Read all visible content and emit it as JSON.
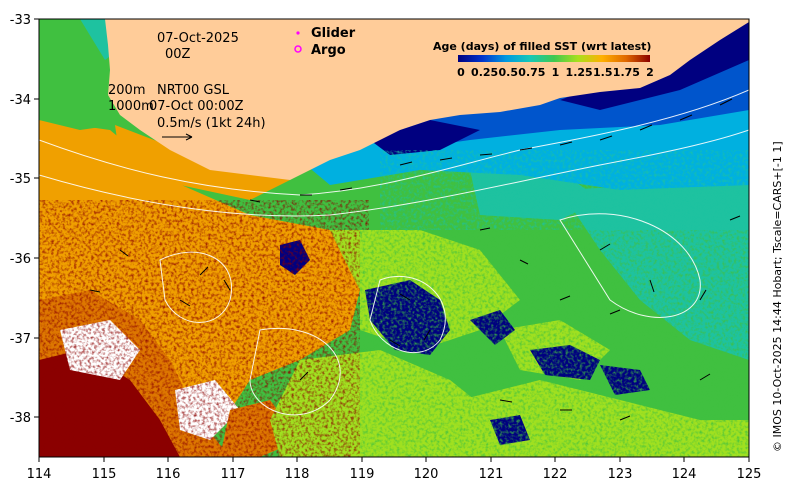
{
  "map": {
    "x_ticks": [
      "114",
      "115",
      "116",
      "117",
      "118",
      "119",
      "120",
      "121",
      "122",
      "123",
      "124",
      "125"
    ],
    "y_ticks": [
      "-33",
      "-34",
      "-35",
      "-36",
      "-37",
      "-38"
    ],
    "x_range": [
      114,
      125
    ],
    "y_range": [
      -38.5,
      -33
    ]
  },
  "annotations": {
    "date": "07-Oct-2025",
    "time": "00Z",
    "contour_200": "200m",
    "contour_1000": "1000m",
    "product": "NRT00 GSL",
    "product_time": "07-Oct 00:00Z",
    "scale_label": "0.5m/s (1kt 24h)"
  },
  "legend": {
    "glider": "Glider",
    "argo": "Argo",
    "glider_color": "#ff00ff",
    "argo_color": "#ff00ff"
  },
  "colorbar": {
    "title": "Age (days) of filled SST (wrt latest)",
    "tick_labels": [
      "0",
      "0.25",
      "0.5",
      "0.75",
      "1",
      "1.25",
      "1.5",
      "1.75",
      "2"
    ],
    "colors": [
      "#00007f",
      "#0033cc",
      "#0099e0",
      "#16c8b8",
      "#40c850",
      "#a8e01c",
      "#ffb000",
      "#e06800",
      "#8b0000"
    ]
  },
  "credit": "© IMOS 10-Oct-2025 14:44 Hobart; Tscale=CARS+[-1 1]",
  "colors": {
    "land": "#ffcc99",
    "deep_blue": "#000080",
    "blue": "#0055cc",
    "cyan": "#00b0e0",
    "teal": "#1ec2a0",
    "green": "#40c040",
    "lime": "#a0e020",
    "orange": "#f0a000",
    "dark_orange": "#dd7700",
    "dark_red": "#8b0000"
  }
}
